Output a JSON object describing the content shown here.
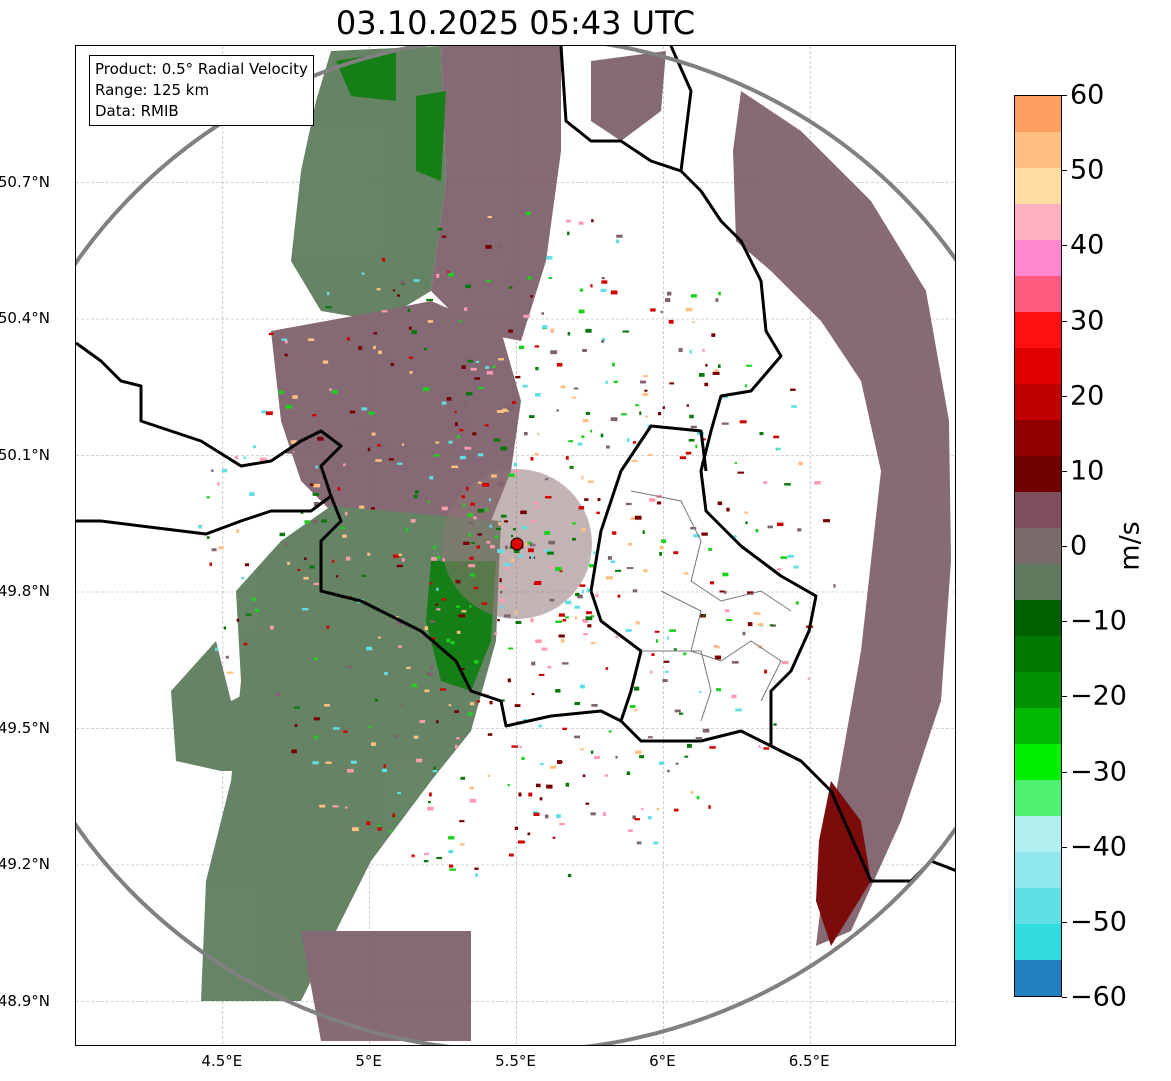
{
  "title": "03.10.2025 05:43 UTC",
  "info_box": {
    "product": "Product: 0.5° Radial Velocity",
    "range": "Range: 125 km",
    "source": "Data: RMIB"
  },
  "map": {
    "extent_lon": [
      4.0,
      7.0
    ],
    "extent_lat": [
      48.8,
      51.0
    ],
    "x_ticks": [
      {
        "value": 4.5,
        "label": "4.5°E"
      },
      {
        "value": 5.0,
        "label": "5°E"
      },
      {
        "value": 5.5,
        "label": "5.5°E"
      },
      {
        "value": 6.0,
        "label": "6°E"
      },
      {
        "value": 6.5,
        "label": "6.5°E"
      }
    ],
    "y_ticks": [
      {
        "value": 50.7,
        "label": "50.7°N"
      },
      {
        "value": 50.4,
        "label": "50.4°N"
      },
      {
        "value": 50.1,
        "label": "50.1°N"
      },
      {
        "value": 49.8,
        "label": "49.8°N"
      },
      {
        "value": 49.5,
        "label": "49.5°N"
      },
      {
        "value": 49.2,
        "label": "49.2°N"
      },
      {
        "value": 48.9,
        "label": "48.9°N"
      }
    ],
    "radar_site": {
      "lon": 5.505,
      "lat": 49.914,
      "color": "#e00000"
    },
    "range_km": 125
  },
  "colorbar": {
    "label": "m/s",
    "min": -60,
    "max": 60,
    "ticks": [
      "60",
      "50",
      "40",
      "30",
      "20",
      "10",
      "0",
      "−10",
      "−20",
      "−30",
      "−40",
      "−50",
      "−60"
    ],
    "colors": [
      "#ffa060",
      "#ffc080",
      "#ffdca0",
      "#ffb0c0",
      "#ff88d0",
      "#ff5a80",
      "#ff1010",
      "#e00000",
      "#c00000",
      "#900000",
      "#700000",
      "#805060",
      "#7a6a6a",
      "#607a60",
      "#006000",
      "#007800",
      "#009000",
      "#00b800",
      "#00ee00",
      "#50f070",
      "#b0eef0",
      "#90e8ec",
      "#60e0e4",
      "#30dce0",
      "#2080c0"
    ]
  },
  "echo_colors": {
    "mauve": "#7f636e",
    "graygreen": "#5e7d5e",
    "darkgreen": "#0a780a",
    "maroon": "#760000",
    "red": "#d00000",
    "green": "#20d020"
  }
}
